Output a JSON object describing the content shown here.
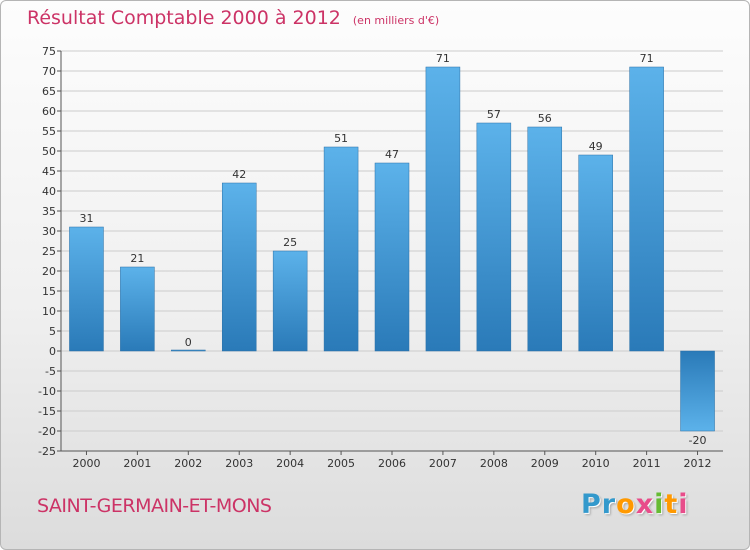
{
  "header": {
    "title": "Résultat Comptable 2000 à 2012",
    "subtitle": "(en milliers d'€)"
  },
  "footer": {
    "commune": "SAINT-GERMAIN-ET-MONS",
    "logo_text": "Proxiti"
  },
  "colors": {
    "bar_top": "#5cb2ea",
    "bar_bottom": "#2a7ab8",
    "title": "#cc3366",
    "grid": "#cccccc"
  },
  "chart_data": {
    "type": "bar",
    "title": "Résultat Comptable 2000 à 2012",
    "subtitle": "(en milliers d'€)",
    "categories": [
      "2000",
      "2001",
      "2002",
      "2003",
      "2004",
      "2005",
      "2006",
      "2007",
      "2008",
      "2009",
      "2010",
      "2011",
      "2012"
    ],
    "values": [
      31,
      21,
      0,
      42,
      25,
      51,
      47,
      71,
      57,
      56,
      49,
      71,
      -20
    ],
    "data_labels": [
      "31",
      "21",
      "0",
      "42",
      "25",
      "51",
      "47",
      "71",
      "57",
      "56",
      "49",
      "71",
      "-20"
    ],
    "ylim": [
      -25,
      75
    ],
    "yticks": [
      75,
      70,
      65,
      60,
      55,
      50,
      45,
      40,
      35,
      30,
      25,
      20,
      15,
      10,
      5,
      0,
      -5,
      -10,
      -15,
      -20,
      -25
    ],
    "ytick_labels": [
      "75",
      "70",
      "65",
      "60",
      "55",
      "50",
      "45",
      "40",
      "35",
      "30",
      "25",
      "20",
      "15",
      "10",
      "5",
      "0",
      "-5",
      "-10",
      "-15",
      "-20",
      "-25"
    ],
    "grid": true,
    "xlabel": "",
    "ylabel": ""
  }
}
